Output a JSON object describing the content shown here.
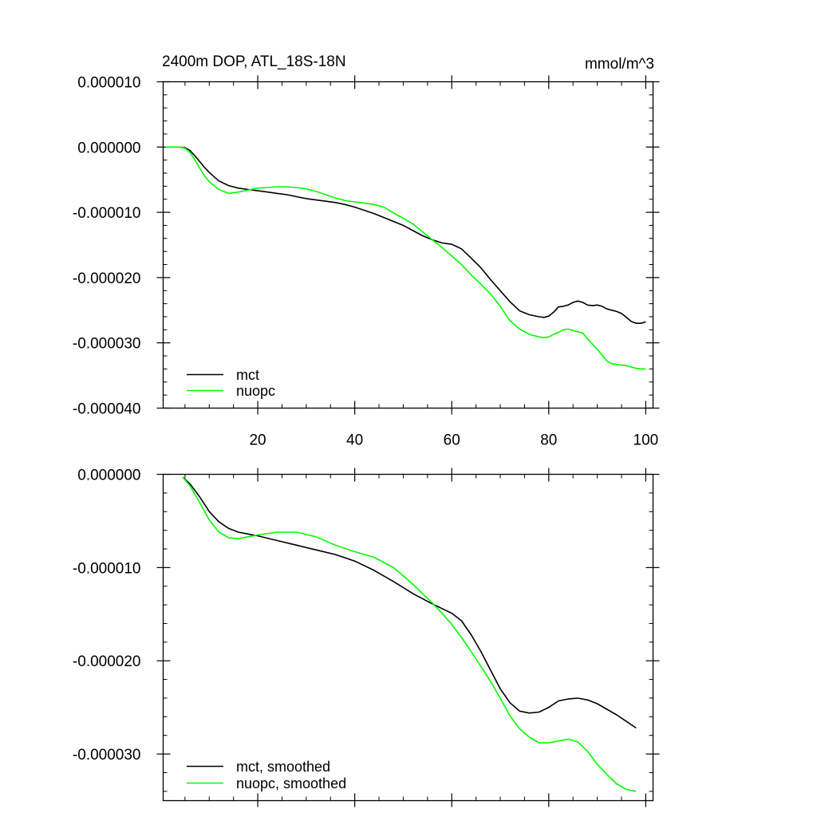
{
  "chart_data": [
    {
      "type": "line",
      "title": "2400m DOP, ATL_18S-18N",
      "units_label": "mmol/m^3",
      "xlim": [
        0.5,
        101.5
      ],
      "ylim": [
        -4e-05,
        1e-05
      ],
      "x_ticks": [
        20,
        40,
        60,
        80,
        100
      ],
      "x_tick_labels": [
        "20",
        "40",
        "60",
        "80",
        "100"
      ],
      "y_ticks": [
        1e-05,
        0,
        -1e-05,
        -2e-05,
        -3e-05,
        -4e-05
      ],
      "y_tick_labels": [
        "0.000010",
        "0.000000",
        "-0.000010",
        "-0.000020",
        "-0.000030",
        "-0.000040"
      ],
      "legend_position": "bottom-left",
      "series": [
        {
          "name": "mct",
          "color": "#000000",
          "x": [
            1,
            2,
            3,
            4,
            5,
            6,
            7,
            8,
            9,
            10,
            12,
            14,
            16,
            18,
            20,
            22,
            24,
            26,
            28,
            30,
            32,
            34,
            36,
            38,
            40,
            42,
            44,
            46,
            48,
            50,
            52,
            54,
            56,
            58,
            60,
            62,
            64,
            66,
            68,
            70,
            72,
            74,
            76,
            78,
            79,
            80,
            81,
            82,
            83,
            84,
            85,
            86,
            87,
            88,
            89,
            90,
            91,
            92,
            93,
            94,
            95,
            96,
            97,
            98,
            99,
            100
          ],
          "y": [
            0,
            0,
            0,
            0,
            -1e-07,
            -5e-07,
            -1.3e-06,
            -2.2e-06,
            -3.1e-06,
            -3.9e-06,
            -5.2e-06,
            -5.9e-06,
            -6.3e-06,
            -6.5e-06,
            -6.7e-06,
            -6.9e-06,
            -7.1e-06,
            -7.3e-06,
            -7.6e-06,
            -7.9e-06,
            -8.1e-06,
            -8.3e-06,
            -8.5e-06,
            -8.8e-06,
            -9.2e-06,
            -9.7e-06,
            -1.02e-05,
            -1.08e-05,
            -1.14e-05,
            -1.2e-05,
            -1.28e-05,
            -1.36e-05,
            -1.42e-05,
            -1.47e-05,
            -1.49e-05,
            -1.56e-05,
            -1.7e-05,
            -1.85e-05,
            -2.03e-05,
            -2.2e-05,
            -2.37e-05,
            -2.51e-05,
            -2.57e-05,
            -2.6e-05,
            -2.61e-05,
            -2.59e-05,
            -2.53e-05,
            -2.45e-05,
            -2.44e-05,
            -2.42e-05,
            -2.38e-05,
            -2.36e-05,
            -2.38e-05,
            -2.42e-05,
            -2.43e-05,
            -2.42e-05,
            -2.44e-05,
            -2.48e-05,
            -2.5e-05,
            -2.52e-05,
            -2.55e-05,
            -2.61e-05,
            -2.67e-05,
            -2.7e-05,
            -2.7e-05,
            -2.68e-05
          ]
        },
        {
          "name": "nuopc",
          "color": "#00ff00",
          "x": [
            1,
            2,
            3,
            4,
            5,
            6,
            7,
            8,
            9,
            10,
            12,
            14,
            16,
            18,
            20,
            22,
            24,
            26,
            28,
            30,
            32,
            34,
            36,
            38,
            40,
            42,
            44,
            46,
            48,
            50,
            52,
            54,
            56,
            58,
            60,
            62,
            64,
            66,
            68,
            70,
            72,
            74,
            76,
            78,
            79,
            80,
            81,
            82,
            83,
            84,
            85,
            86,
            87,
            88,
            89,
            90,
            91,
            92,
            93,
            94,
            95,
            96,
            97,
            98,
            99,
            100
          ],
          "y": [
            0,
            0,
            0,
            0,
            -2e-07,
            -8e-07,
            -1.9e-06,
            -3.2e-06,
            -4.4e-06,
            -5.3e-06,
            -6.5e-06,
            -7.1e-06,
            -6.9e-06,
            -6.6e-06,
            -6.3e-06,
            -6.2e-06,
            -6.1e-06,
            -6.1e-06,
            -6.2e-06,
            -6.4e-06,
            -6.8e-06,
            -7.3e-06,
            -7.8e-06,
            -8.2e-06,
            -8.4e-06,
            -8.6e-06,
            -8.8e-06,
            -9.2e-06,
            -1.01e-05,
            -1.09e-05,
            -1.18e-05,
            -1.3e-05,
            -1.42e-05,
            -1.54e-05,
            -1.67e-05,
            -1.8e-05,
            -1.96e-05,
            -2.1e-05,
            -2.25e-05,
            -2.44e-05,
            -2.66e-05,
            -2.79e-05,
            -2.87e-05,
            -2.91e-05,
            -2.92e-05,
            -2.91e-05,
            -2.87e-05,
            -2.84e-05,
            -2.8e-05,
            -2.79e-05,
            -2.81e-05,
            -2.83e-05,
            -2.85e-05,
            -2.94e-05,
            -3.02e-05,
            -3.1e-05,
            -3.19e-05,
            -3.28e-05,
            -3.32e-05,
            -3.33e-05,
            -3.34e-05,
            -3.35e-05,
            -3.37e-05,
            -3.39e-05,
            -3.4e-05,
            -3.4e-05
          ]
        }
      ]
    },
    {
      "type": "line",
      "xlim": [
        0.5,
        101.5
      ],
      "ylim": [
        -3.5e-05,
        0
      ],
      "x_ticks": [
        20,
        40,
        60,
        80,
        100
      ],
      "y_ticks": [
        0,
        -1e-05,
        -2e-05,
        -3e-05
      ],
      "y_tick_labels": [
        "0.000000",
        "-0.000010",
        "-0.000020",
        "-0.000030"
      ],
      "legend_position": "bottom-left",
      "series": [
        {
          "name": "mct, smoothed",
          "color": "#000000",
          "x": [
            4.5,
            6,
            8,
            10,
            12,
            14,
            16,
            18,
            20,
            24,
            28,
            32,
            36,
            40,
            44,
            48,
            52,
            56,
            58,
            60,
            62,
            64,
            66,
            68,
            70,
            72,
            74,
            76,
            78,
            80,
            82,
            84,
            86,
            88,
            90,
            92,
            94,
            96,
            98
          ],
          "y": [
            -3e-07,
            -1e-06,
            -2.4e-06,
            -4e-06,
            -5.1e-06,
            -5.8e-06,
            -6.2e-06,
            -6.4e-06,
            -6.6e-06,
            -7.1e-06,
            -7.6e-06,
            -8.1e-06,
            -8.6e-06,
            -9.3e-06,
            -1.03e-05,
            -1.15e-05,
            -1.28e-05,
            -1.39e-05,
            -1.44e-05,
            -1.49e-05,
            -1.57e-05,
            -1.72e-05,
            -1.9e-05,
            -2.1e-05,
            -2.3e-05,
            -2.45e-05,
            -2.54e-05,
            -2.56e-05,
            -2.55e-05,
            -2.5e-05,
            -2.43e-05,
            -2.41e-05,
            -2.4e-05,
            -2.42e-05,
            -2.46e-05,
            -2.52e-05,
            -2.58e-05,
            -2.65e-05,
            -2.72e-05
          ]
        },
        {
          "name": "nuopc, smoothed",
          "color": "#00ff00",
          "x": [
            4.5,
            6,
            8,
            10,
            12,
            14,
            16,
            18,
            20,
            24,
            28,
            32,
            36,
            40,
            44,
            48,
            52,
            56,
            58,
            60,
            62,
            64,
            66,
            68,
            70,
            72,
            74,
            76,
            78,
            80,
            82,
            84,
            86,
            88,
            90,
            92,
            94,
            96,
            98
          ],
          "y": [
            -3e-07,
            -1.2e-06,
            -3e-06,
            -4.9e-06,
            -6.2e-06,
            -6.8e-06,
            -6.9e-06,
            -6.7e-06,
            -6.5e-06,
            -6.2e-06,
            -6.2e-06,
            -6.7e-06,
            -7.6e-06,
            -8.3e-06,
            -8.9e-06,
            -1e-05,
            -1.18e-05,
            -1.38e-05,
            -1.49e-05,
            -1.61e-05,
            -1.75e-05,
            -1.9e-05,
            -2.06e-05,
            -2.22e-05,
            -2.4e-05,
            -2.59e-05,
            -2.73e-05,
            -2.82e-05,
            -2.88e-05,
            -2.88e-05,
            -2.86e-05,
            -2.84e-05,
            -2.87e-05,
            -2.97e-05,
            -3.11e-05,
            -3.22e-05,
            -3.32e-05,
            -3.38e-05,
            -3.4e-05
          ]
        }
      ]
    }
  ]
}
